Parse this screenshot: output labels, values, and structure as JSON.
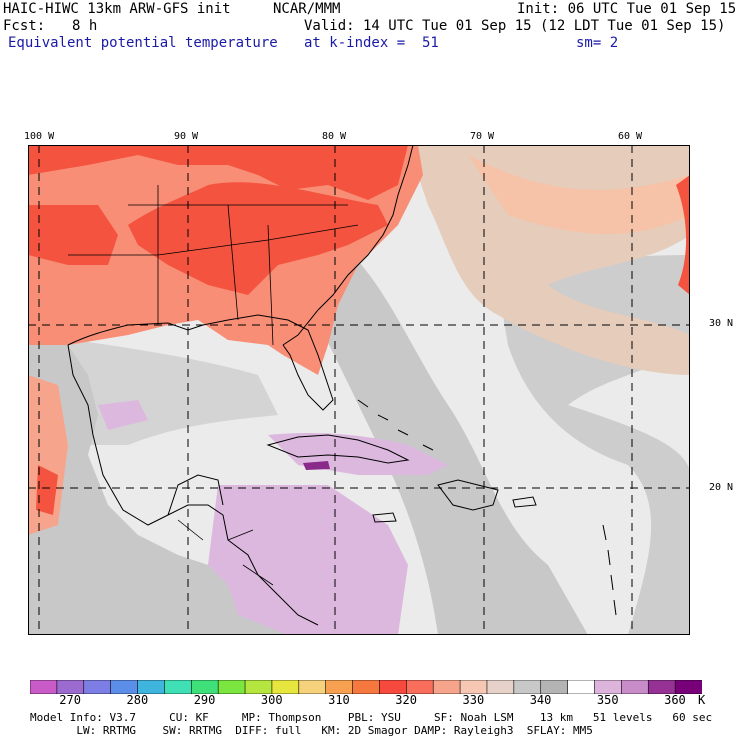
{
  "header": {
    "model": "HAIC-HIWC 13km ARW-GFS init",
    "org": "NCAR/MMM",
    "init": "Init: 06 UTC Tue 01 Sep 15",
    "fcst_label": "Fcst:",
    "fcst_value": "8 h",
    "valid": "Valid: 14 UTC Tue 01 Sep 15 (12 LDT Tue 01 Sep 15)",
    "field": "Equivalent potential temperature",
    "level": "at k-index =  51",
    "smooth": "sm= 2"
  },
  "map": {
    "lon_labels": [
      "100 W",
      "90 W",
      "80 W",
      "70 W",
      "60 W"
    ],
    "lat_labels": [
      "30 N",
      "20 N"
    ],
    "grid_style": "dashed",
    "colors": {
      "warm_red": "#f4533f",
      "salmon": "#f98e76",
      "peach": "#f6c3a8",
      "tan": "#e5ccbb",
      "light_gray": "#ebebeb",
      "mid_gray": "#c8c8c8",
      "lilac": "#dcb8df",
      "deep_purple": "#8a2a8a"
    }
  },
  "colorbar": {
    "colors": [
      "#c85bc8",
      "#9b6bd0",
      "#7d7de6",
      "#5b8ee8",
      "#3fb5de",
      "#3fe0b5",
      "#3fe07a",
      "#7ae63f",
      "#b5e63f",
      "#e6e63f",
      "#f6d27d",
      "#f6a050",
      "#f6783f",
      "#f64a3f",
      "#f96e5a",
      "#f6a58c",
      "#f6c8b4",
      "#e6d2c8",
      "#c8c8c8",
      "#b4b4b4",
      "#ffffff",
      "#dcb4dc",
      "#c88cc8",
      "#963296",
      "#780078"
    ],
    "labels": [
      "270",
      "280",
      "290",
      "300",
      "310",
      "320",
      "330",
      "340",
      "350",
      "360"
    ],
    "unit": "K"
  },
  "footer": {
    "line1": "Model Info: V3.7     CU: KF     MP: Thompson    PBL: YSU     SF: Noah LSM    13 km   51 levels   60 sec",
    "line2": "       LW: RRTMG    SW: RRTMG  DIFF: full   KM: 2D Smagor DAMP: Rayleigh3  SFLAY: MM5"
  }
}
